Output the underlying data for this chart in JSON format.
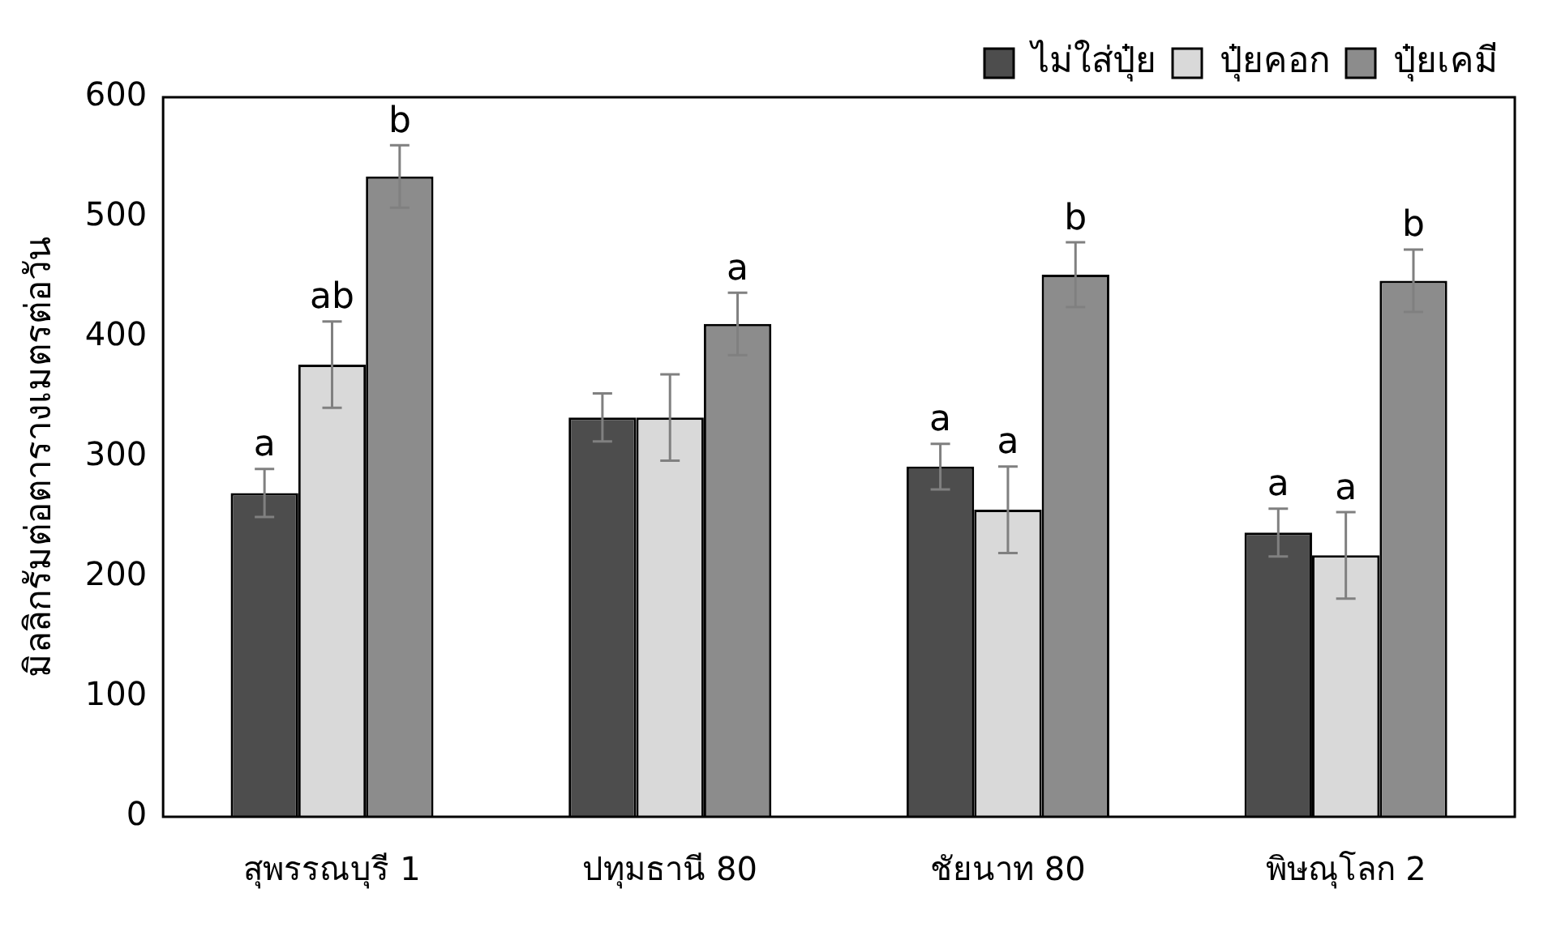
{
  "chart_data": {
    "type": "bar",
    "ylabel": "มิลลิกรัมต่อตารางเมตรต่อวัน",
    "categories": [
      "สุพรรณบุรี 1",
      "ปทุมธานี 80",
      "ชัยนาท 80",
      "พิษณุโลก 2"
    ],
    "series": [
      {
        "name": "ไม่ใส่ปุ๋ย",
        "color": "#4d4d4d",
        "values": [
          270,
          333,
          292,
          237
        ],
        "errors": [
          20,
          20,
          19,
          20
        ],
        "value_labels": [
          "a",
          null,
          "a",
          "a"
        ]
      },
      {
        "name": "ปุ๋ยคอก",
        "color": "#d9d9d9",
        "values": [
          377,
          333,
          256,
          218
        ],
        "errors": [
          36,
          36,
          36,
          36
        ],
        "value_labels": [
          "ab",
          null,
          "a",
          "a"
        ]
      },
      {
        "name": "ปุ๋ยเคมี",
        "color": "#8c8c8c",
        "values": [
          534,
          411,
          452,
          447
        ],
        "errors": [
          26,
          26,
          27,
          26
        ],
        "value_labels": [
          "b",
          "a",
          "b",
          "b"
        ]
      }
    ],
    "ylim": [
      0,
      600
    ],
    "yticks": [
      0,
      100,
      200,
      300,
      400,
      500,
      600
    ],
    "grid": false,
    "legend": "top right"
  }
}
